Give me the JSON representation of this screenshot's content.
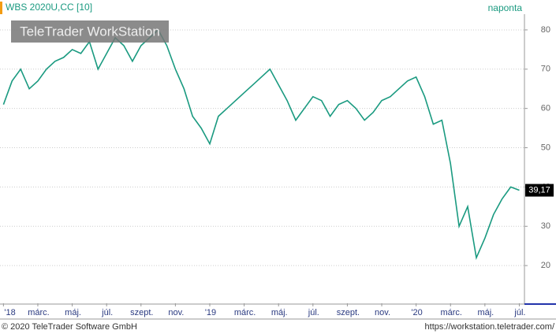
{
  "chart_data": {
    "type": "line",
    "title": "WBS 2020U,CC [10]",
    "interval": "naponta",
    "watermark": "TeleTrader WorkStation",
    "copyright": "© 2020 TeleTrader Software GmbH",
    "url": "https://workstation.teletrader.com/",
    "x": [
      0,
      0.5,
      1,
      1.5,
      2,
      2.5,
      3,
      3.5,
      4,
      4.5,
      5,
      5.5,
      6,
      6.5,
      7,
      7.5,
      8,
      8.5,
      9,
      9.5,
      10,
      10.5,
      11,
      11.5,
      12,
      12.5,
      13,
      13.5,
      14,
      14.5,
      15,
      15.5,
      16,
      16.5,
      17,
      17.5,
      18,
      18.5,
      19,
      19.5,
      20,
      20.5,
      21,
      21.5,
      22,
      22.5,
      23,
      23.5,
      24,
      24.5,
      25,
      25.5,
      26,
      26.5,
      27,
      27.5,
      28,
      28.5,
      29,
      29.5,
      30
    ],
    "series": [
      {
        "color": "#1a9a80",
        "values": [
          61,
          67,
          70,
          65,
          67,
          70,
          72,
          73,
          75,
          74,
          77,
          70,
          74,
          78,
          76,
          72,
          76,
          78,
          80,
          76,
          70,
          65,
          58,
          55,
          51,
          58,
          60,
          62,
          64,
          66,
          68,
          70,
          66,
          62,
          57,
          60,
          63,
          62,
          58,
          61,
          62,
          60,
          57,
          59,
          62,
          63,
          65,
          67,
          68,
          63,
          56,
          57,
          46,
          30,
          35,
          22,
          27,
          33,
          37,
          40,
          39.17
        ]
      }
    ],
    "price_tag": {
      "value": 39.17,
      "label": "39,17"
    },
    "xlim": [
      -0.2,
      30.3
    ],
    "ylim": [
      10.4,
      84
    ],
    "yticks": [
      20,
      30,
      40,
      50,
      60,
      70,
      80
    ],
    "xticks": [
      {
        "value": 0,
        "label": "'18"
      },
      {
        "value": 2,
        "label": "márc."
      },
      {
        "value": 4,
        "label": "máj."
      },
      {
        "value": 6,
        "label": "júl."
      },
      {
        "value": 8,
        "label": "szept."
      },
      {
        "value": 10,
        "label": "nov."
      },
      {
        "value": 12,
        "label": "'19"
      },
      {
        "value": 14,
        "label": "márc."
      },
      {
        "value": 16,
        "label": "máj."
      },
      {
        "value": 18,
        "label": "júl."
      },
      {
        "value": 20,
        "label": "szept."
      },
      {
        "value": 22,
        "label": "nov."
      },
      {
        "value": 24,
        "label": "'20"
      },
      {
        "value": 26,
        "label": "márc."
      },
      {
        "value": 28,
        "label": "máj."
      },
      {
        "value": 30,
        "label": "júl."
      }
    ],
    "grid": true
  }
}
